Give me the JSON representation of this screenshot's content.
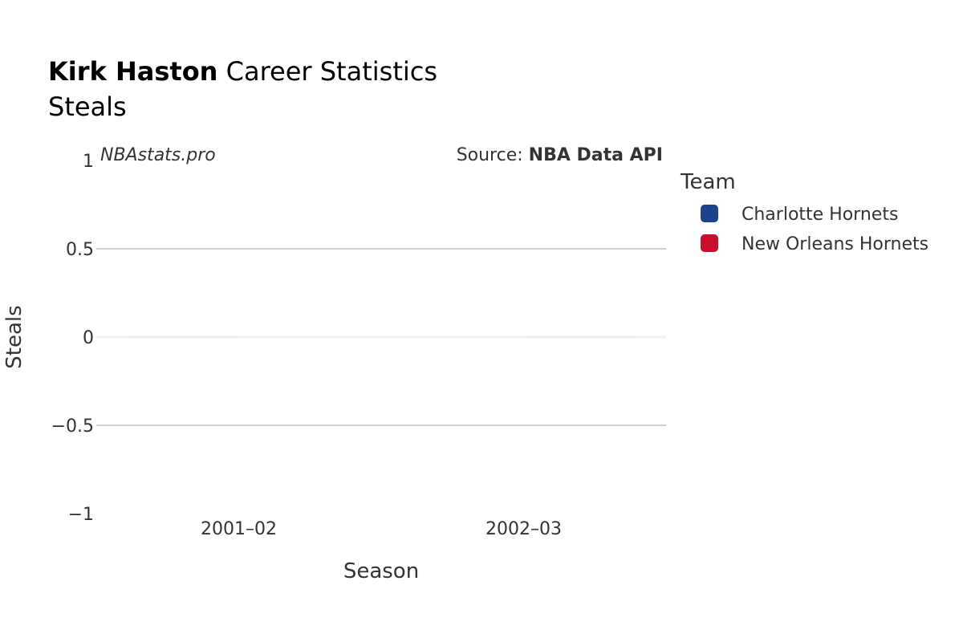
{
  "header": {
    "player_name": "Kirk Haston",
    "title_rest": " Career Statistics",
    "subtitle": "Steals"
  },
  "watermark": "NBAstats.pro",
  "source": {
    "prefix": "Source: ",
    "name": "NBA Data API"
  },
  "chart_data": {
    "type": "bar",
    "title": "Kirk Haston Career Statistics",
    "subtitle": "Steals",
    "xlabel": "Season",
    "ylabel": "Steals",
    "categories": [
      "2001–02",
      "2002–03"
    ],
    "ylim": [
      -1,
      1
    ],
    "yticks": [
      -1,
      -0.5,
      0,
      0.5,
      1
    ],
    "ytick_labels": [
      "−1",
      "−0.5",
      "0",
      "0.5",
      "1"
    ],
    "grid": true,
    "legend": {
      "title": "Team",
      "position": "right"
    },
    "series": [
      {
        "name": "Charlotte Hornets",
        "color": "#1D428A",
        "values": [
          0,
          null
        ]
      },
      {
        "name": "New Orleans Hornets",
        "color": "#C8102E",
        "values": [
          null,
          0
        ]
      }
    ]
  }
}
